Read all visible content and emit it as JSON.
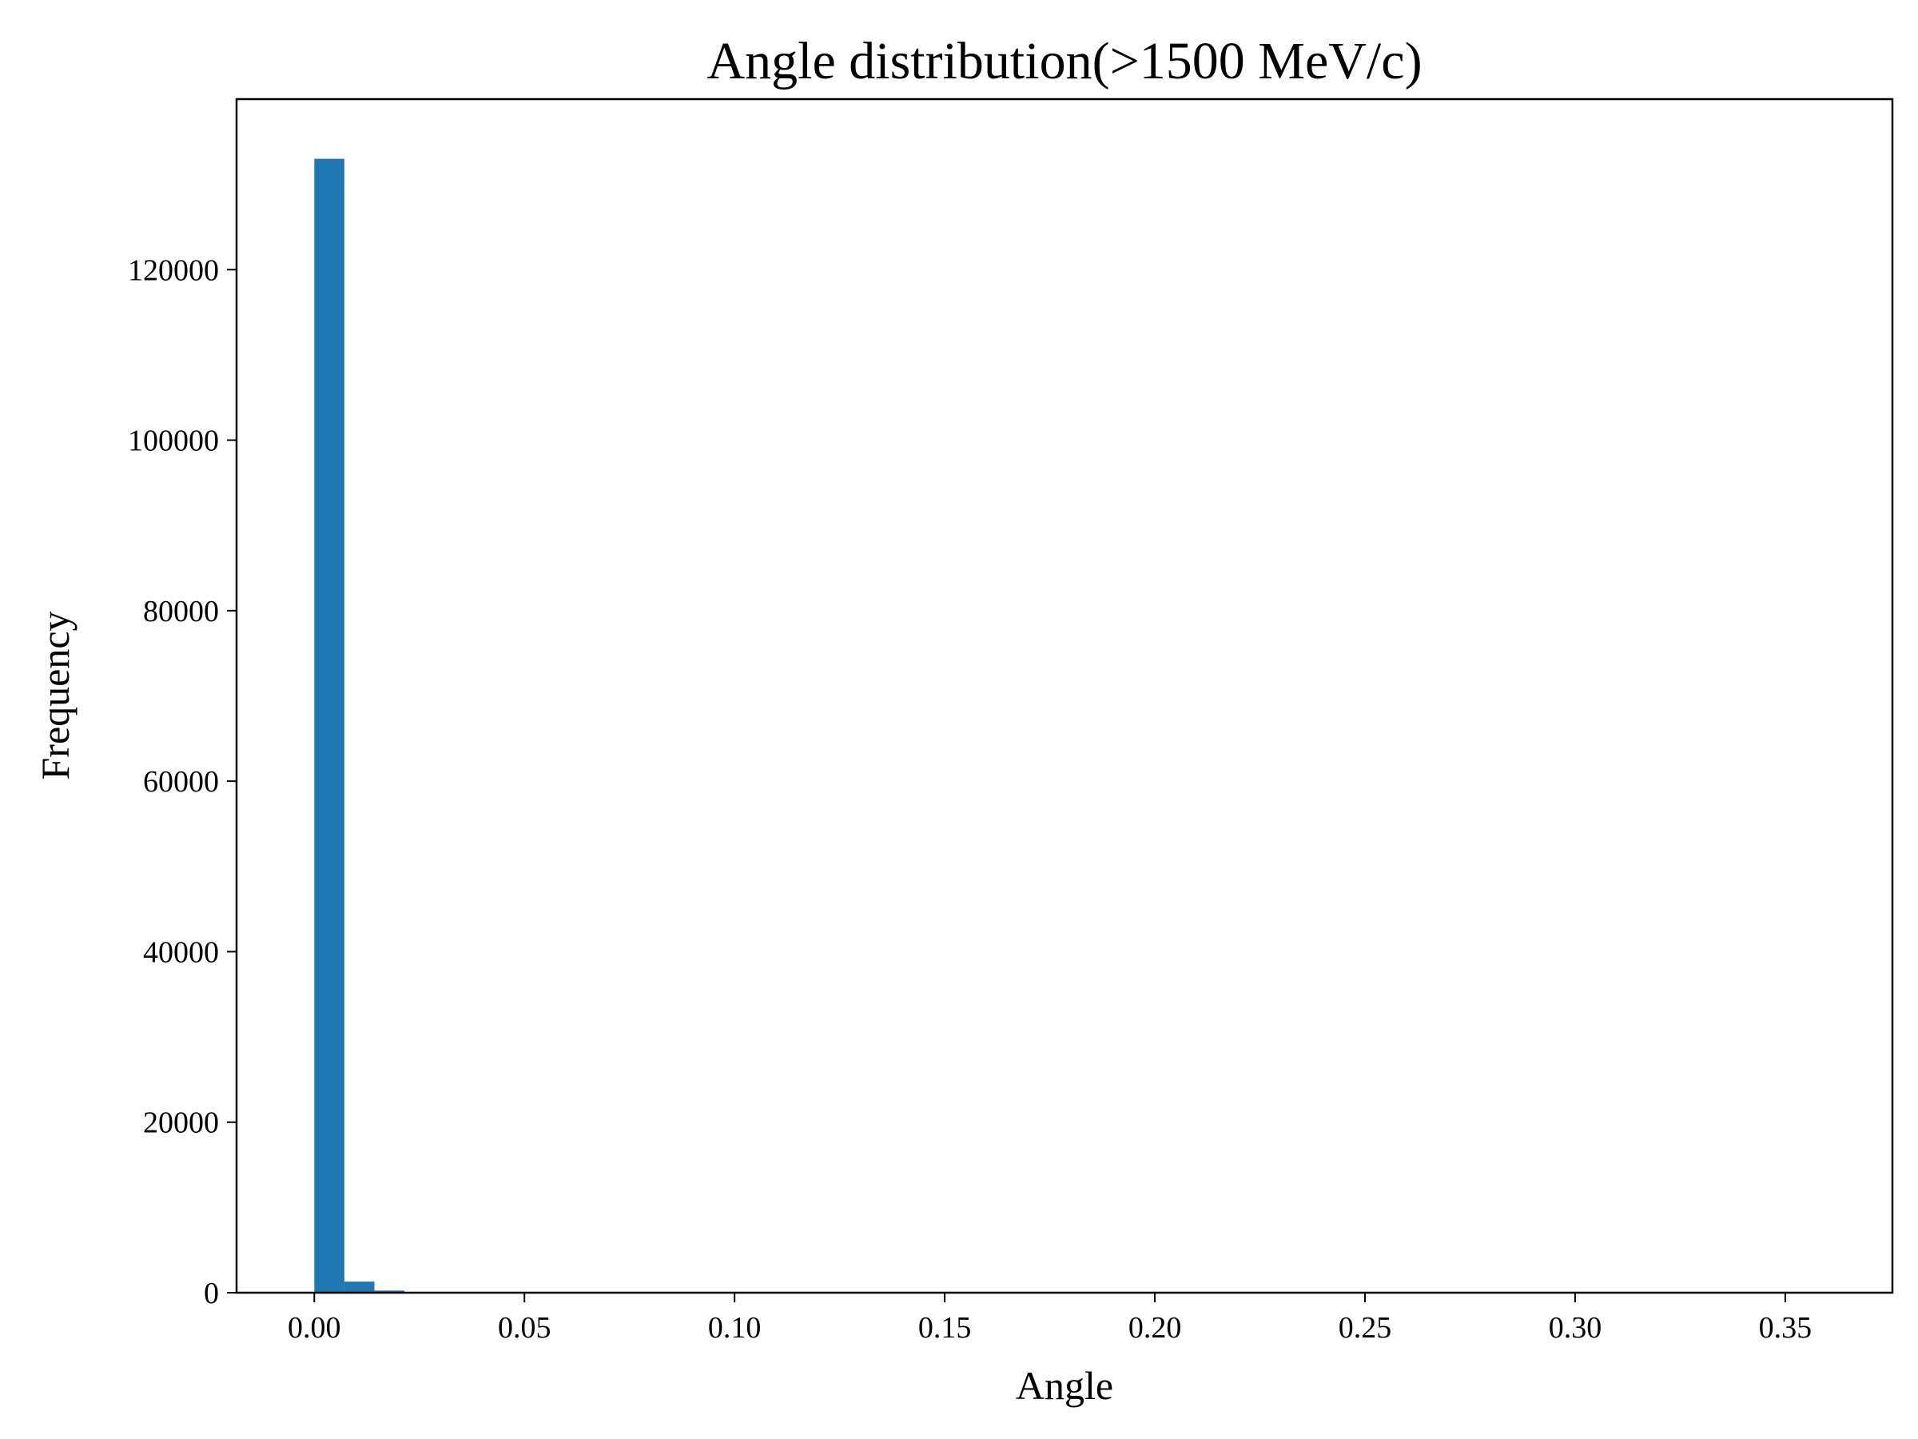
{
  "chart_data": {
    "type": "bar",
    "title": "Angle distribution(>1500 MeV/c)",
    "xlabel": "Angle",
    "ylabel": "Frequency",
    "xlim": [
      -0.0185,
      0.3755
    ],
    "ylim": [
      0,
      140000
    ],
    "grid": false,
    "legend": "none",
    "bar_color": "#1f77b4",
    "bin_width": 0.00715,
    "bins": [
      {
        "x0": 0.0,
        "count": 133000
      },
      {
        "x0": 0.00715,
        "count": 1300
      },
      {
        "x0": 0.0143,
        "count": 250
      },
      {
        "x0": 0.02145,
        "count": 60
      },
      {
        "x0": 0.0286,
        "count": 20
      },
      {
        "x0": 0.03575,
        "count": 8
      },
      {
        "x0": 0.0429,
        "count": 4
      },
      {
        "x0": 0.05005,
        "count": 2
      },
      {
        "x0": 0.0572,
        "count": 1
      },
      {
        "x0": 0.06435,
        "count": 1
      }
    ],
    "xticks": [
      0.0,
      0.05,
      0.1,
      0.15,
      0.2,
      0.25,
      0.3,
      0.35
    ],
    "xtick_labels": [
      "0.00",
      "0.05",
      "0.10",
      "0.15",
      "0.20",
      "0.25",
      "0.30",
      "0.35"
    ],
    "yticks": [
      0,
      20000,
      40000,
      60000,
      80000,
      100000,
      120000
    ],
    "ytick_labels": [
      "0",
      "20000",
      "40000",
      "60000",
      "80000",
      "100000",
      "120000"
    ]
  }
}
